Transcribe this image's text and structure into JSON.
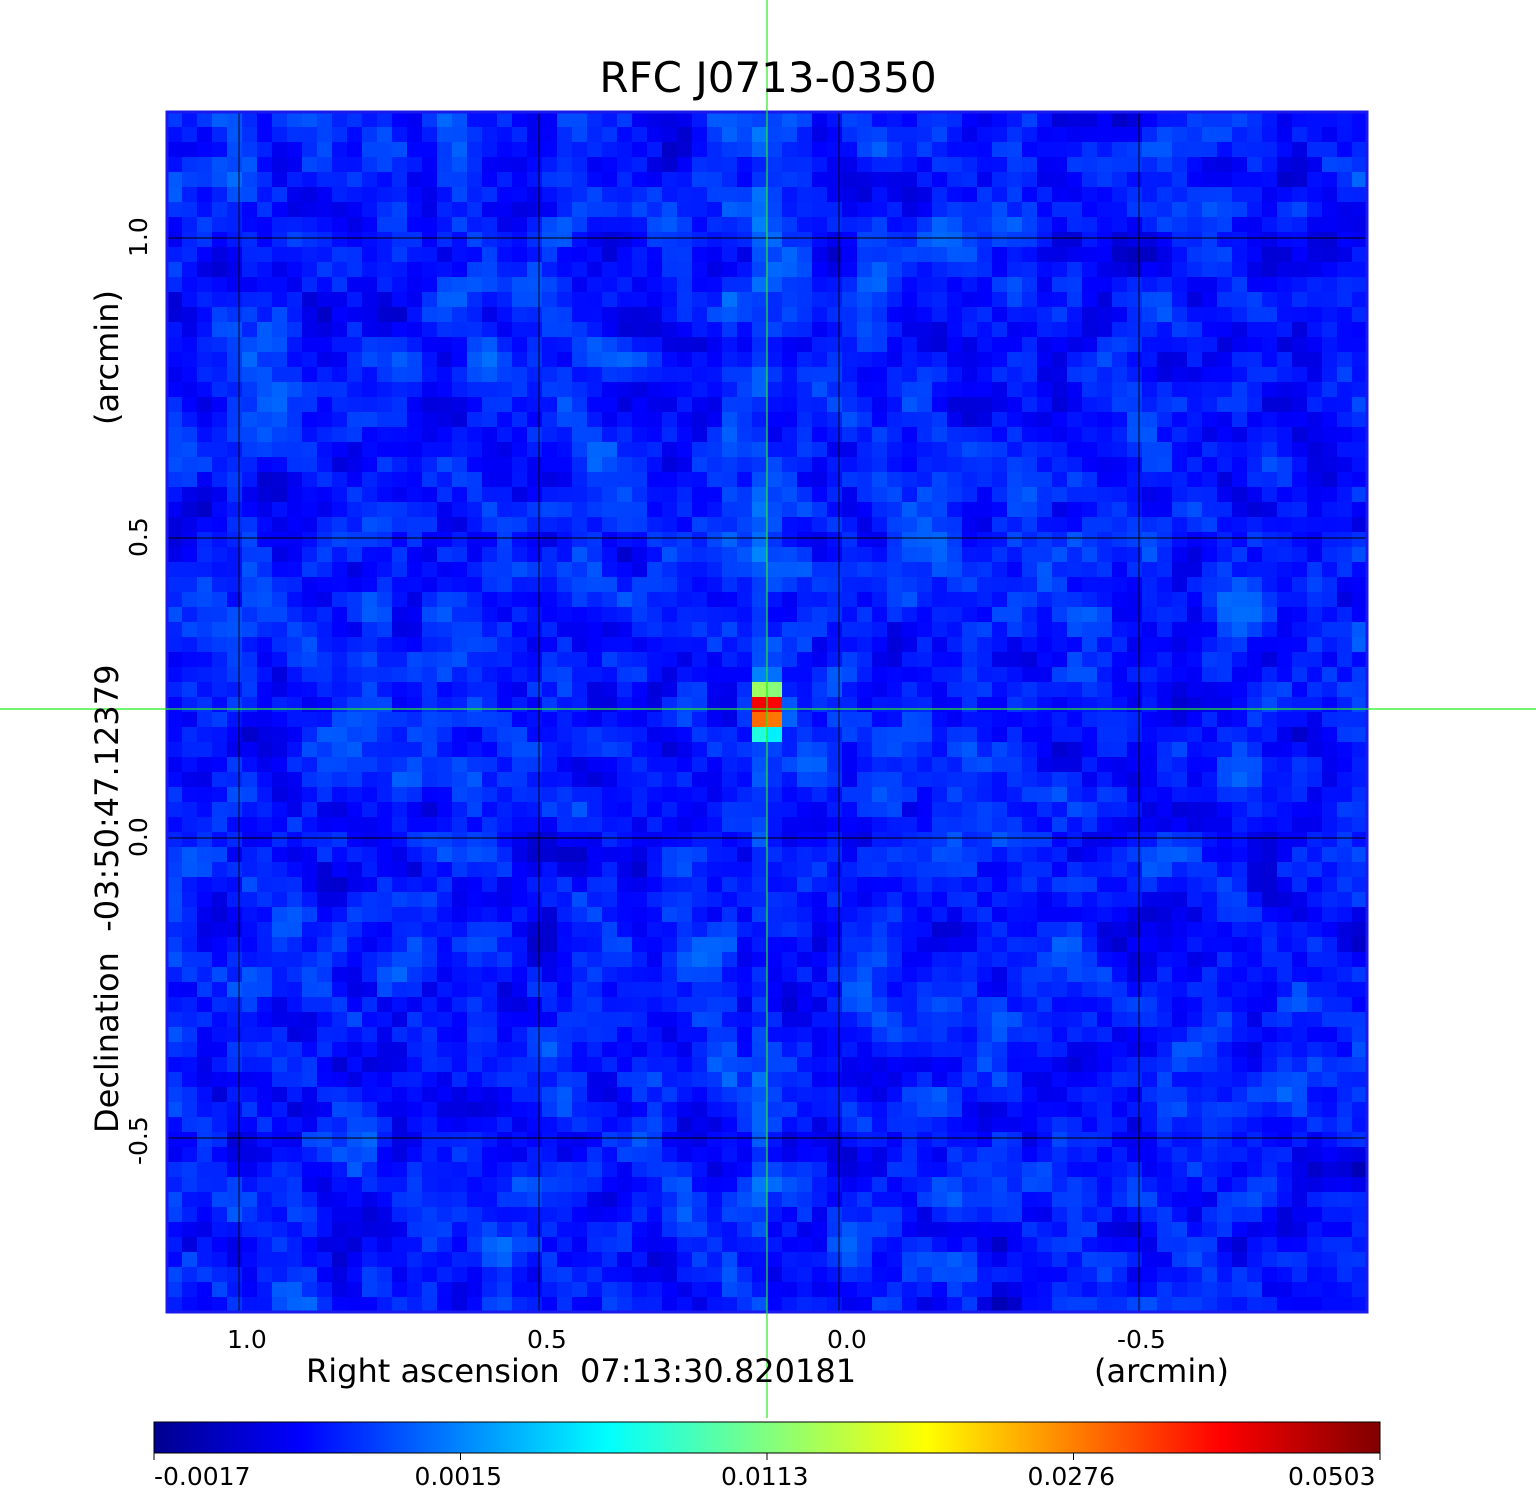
{
  "chart_data": {
    "type": "heatmap",
    "title": "RFC J0713-0350",
    "xlabel": "Right ascension  07:13:30.820181",
    "xlabel_unit": "(arcmin)",
    "ylabel": "Declination  -03:50:47.12379",
    "ylabel_unit": "(arcmin)",
    "x_ticks": [
      1.0,
      0.5,
      0.0,
      -0.5
    ],
    "x_tick_labels": [
      "1.0",
      "0.5",
      "0.0",
      "-0.5"
    ],
    "y_ticks": [
      1.0,
      0.5,
      0.0,
      -0.5
    ],
    "y_tick_labels": [
      "1.0",
      "0.5",
      "0.0",
      "-0.5"
    ],
    "xlim": [
      1.12,
      -0.88
    ],
    "ylim": [
      -0.79,
      1.21
    ],
    "x_reversed": true,
    "grid": true,
    "crosshair": {
      "x": 0.12,
      "y": 0.215
    },
    "source_peak": {
      "x": 0.12,
      "y": 0.215,
      "value": 0.0503
    },
    "colorbar": {
      "colormap": "jet",
      "tick_labels": [
        "-0.0017",
        "0.0015",
        "0.0113",
        "0.0276",
        "0.0503"
      ],
      "tick_values": [
        -0.0017,
        0.0015,
        0.0113,
        0.0276,
        0.0503
      ]
    },
    "colors": {
      "title": "#1010d0",
      "frame": "#1a1aee",
      "crosshair": "#22ee22",
      "grid": "#000000",
      "background_field": "#2a6af0"
    }
  }
}
